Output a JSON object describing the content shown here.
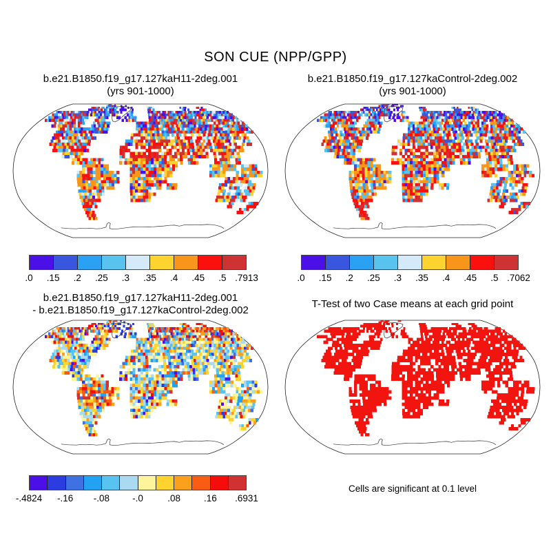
{
  "chart_data": {
    "type": "heatmap",
    "title": "SON CUE (NPP/GPP)",
    "projection": "robinson",
    "background": "#ffffff",
    "map_outline_color": "#222222",
    "coastline_color": "#333333",
    "panels": [
      {
        "id": "case1",
        "title_lines": [
          "b.e21.B1850.f19_g17.127kaH11-2deg.001",
          "(yrs 901-1000)"
        ],
        "value_range": [
          0.0,
          0.7913
        ],
        "colorbar": {
          "ticks": [
            ".0",
            ".15",
            ".2",
            ".25",
            ".3",
            ".35",
            ".4",
            ".45",
            ".5",
            ".7913"
          ],
          "colors": [
            "#4b0fe8",
            "#3956de",
            "#2aa1f2",
            "#58c3ee",
            "#d5eaf8",
            "#fdd330",
            "#f8961c",
            "#fc100d",
            "#cf3232"
          ]
        }
      },
      {
        "id": "case2",
        "title_lines": [
          "b.e21.B1850.f19_g17.127kaControl-2deg.002",
          "(yrs 901-1000)"
        ],
        "value_range": [
          0.0,
          0.7062
        ],
        "colorbar": {
          "ticks": [
            ".0",
            ".15",
            ".2",
            ".25",
            ".3",
            ".35",
            ".4",
            ".45",
            ".5",
            ".7062"
          ],
          "colors": [
            "#4b0fe8",
            "#3956de",
            "#2aa1f2",
            "#58c3ee",
            "#d5eaf8",
            "#fdd330",
            "#f8961c",
            "#fc100d",
            "#cf3232"
          ]
        }
      },
      {
        "id": "difference",
        "title_lines": [
          "b.e21.B1850.f19_g17.127kaH11-2deg.001",
          "- b.e21.B1850.f19_g17.127kaControl-2deg.002"
        ],
        "value_range": [
          -0.4824,
          0.6931
        ],
        "colorbar": {
          "ticks": [
            "-.4824",
            "-.16",
            "-.08",
            "-.0",
            ".08",
            ".16",
            ".6931"
          ],
          "colors": [
            "#4b0fe8",
            "#2d3ce0",
            "#3f71e3",
            "#22a2f2",
            "#58c3ee",
            "#a9daf2",
            "#fdf49c",
            "#fdd330",
            "#fba01d",
            "#f95c13",
            "#f40d0b",
            "#d03232"
          ]
        }
      },
      {
        "id": "ttest",
        "title_lines": [
          "T-Test of two Case means at each grid point"
        ],
        "caption": "Cells are significant at 0.1 level",
        "significant_color": "#f2150f"
      }
    ]
  }
}
